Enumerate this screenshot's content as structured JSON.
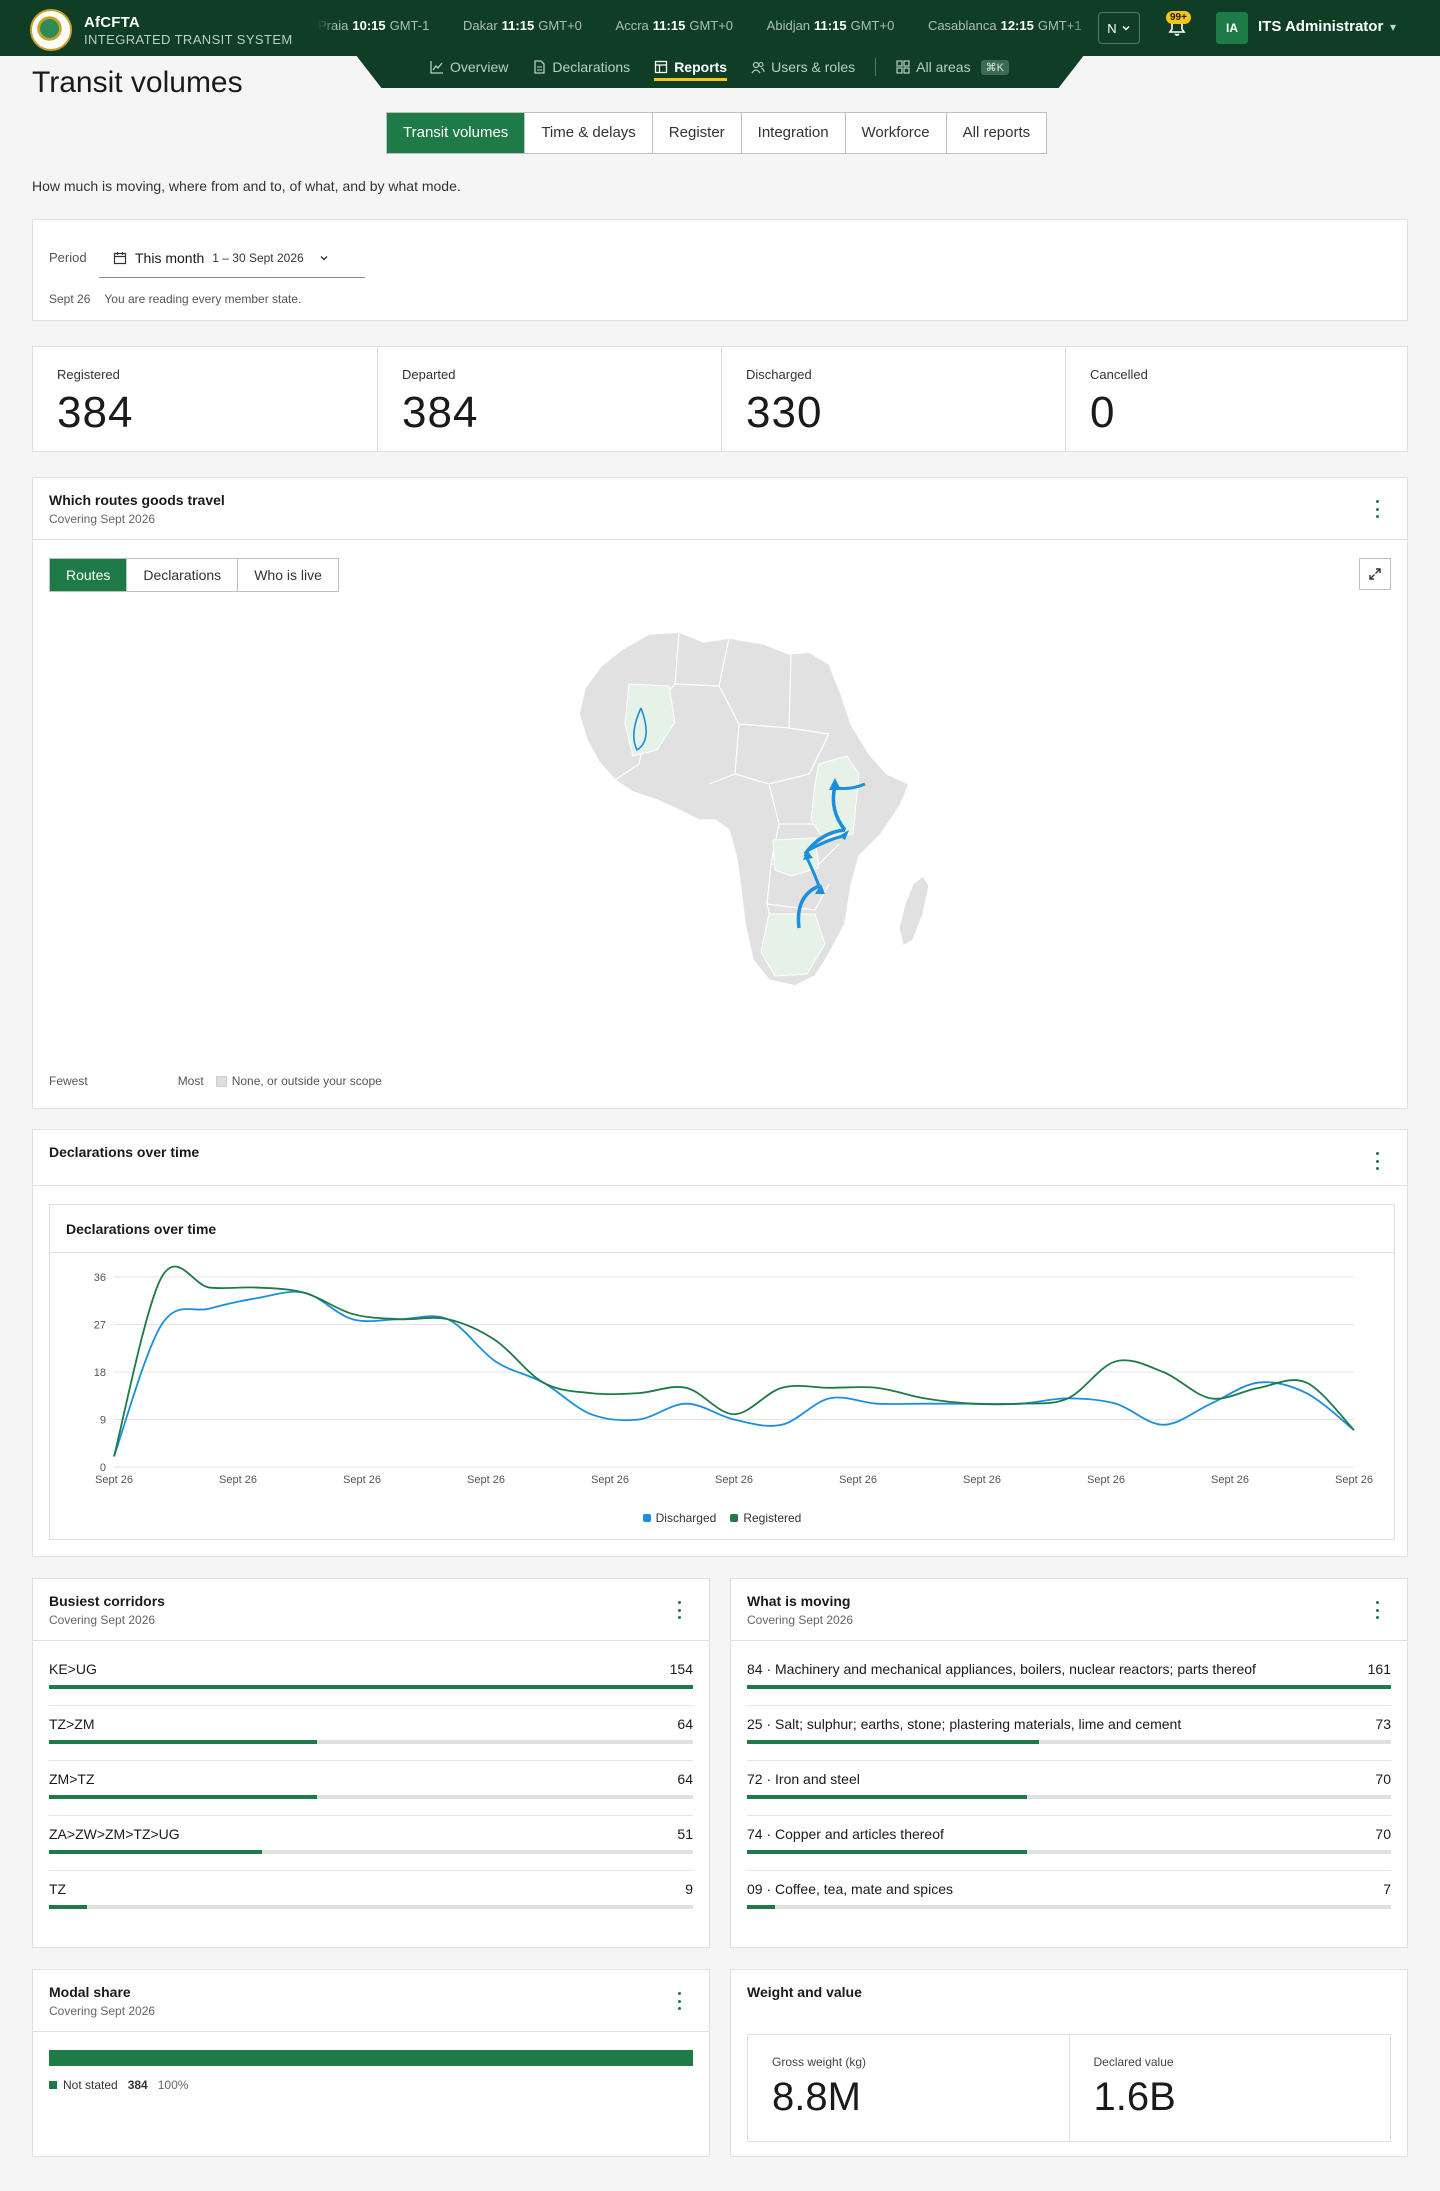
{
  "app": {
    "name": "AfCFTA",
    "subtitle": "INTEGRATED TRANSIT SYSTEM",
    "colors": {
      "brand": "#0f3d25",
      "accent": "#1e7a46",
      "highlight": "#f5c518",
      "discharged": "#1b8fdc",
      "registered": "#1e7a46"
    }
  },
  "clocks": [
    {
      "city": "Praia",
      "time": "10:15",
      "zone": "GMT-1"
    },
    {
      "city": "Dakar",
      "time": "11:15",
      "zone": "GMT+0"
    },
    {
      "city": "Accra",
      "time": "11:15",
      "zone": "GMT+0"
    },
    {
      "city": "Abidjan",
      "time": "11:15",
      "zone": "GMT+0"
    },
    {
      "city": "Casablanca",
      "time": "12:15",
      "zone": "GMT+1"
    }
  ],
  "header": {
    "language": "N",
    "notifications_badge": "99+",
    "avatar_initials": "IA",
    "user_name": "ITS Administrator"
  },
  "nav": {
    "items": [
      {
        "label": "Overview",
        "icon": "chart-line-icon"
      },
      {
        "label": "Declarations",
        "icon": "document-icon"
      },
      {
        "label": "Reports",
        "icon": "table-icon",
        "active": true
      },
      {
        "label": "Users & roles",
        "icon": "users-icon"
      }
    ],
    "all_areas": "All areas",
    "all_areas_shortcut": "⌘K"
  },
  "page": {
    "title": "Transit volumes",
    "intro": "How much is moving, where from and to, of what, and by what mode.",
    "tabs": [
      "Transit volumes",
      "Time & delays",
      "Register",
      "Integration",
      "Workforce",
      "All reports"
    ]
  },
  "period": {
    "label": "Period",
    "selected": "This month",
    "range": "1 – 30 Sept 2026",
    "foot_month": "Sept 26",
    "foot_scope": "You are reading every member state."
  },
  "kpis": [
    {
      "label": "Registered",
      "value": "384"
    },
    {
      "label": "Departed",
      "value": "384"
    },
    {
      "label": "Discharged",
      "value": "330"
    },
    {
      "label": "Cancelled",
      "value": "0"
    }
  ],
  "routes_card": {
    "title": "Which routes goods travel",
    "subtitle": "Covering Sept 2026",
    "segments": [
      "Routes",
      "Declarations",
      "Who is live"
    ],
    "legend_fewest": "Fewest",
    "legend_most": "Most",
    "legend_none": "None, or outside your scope"
  },
  "declarations_card": {
    "title": "Declarations over time",
    "inner_title": "Declarations over time"
  },
  "chart_data": {
    "type": "line",
    "title": "Declarations over time",
    "x_tick_labels": [
      "Sept 26",
      "Sept 26",
      "Sept 26",
      "Sept 26",
      "Sept 26",
      "Sept 26",
      "Sept 26",
      "Sept 26",
      "Sept 26",
      "Sept 26",
      "Sept 26"
    ],
    "y_ticks": [
      0,
      9,
      18,
      27,
      36
    ],
    "ylim": [
      0,
      36
    ],
    "grid": true,
    "legend": "bottom",
    "series": [
      {
        "name": "Discharged",
        "color": "#1b8fdc",
        "values": [
          2,
          27,
          30,
          32,
          33,
          28,
          28,
          28,
          20,
          16,
          10,
          9,
          12,
          9,
          8,
          13,
          12,
          12,
          12,
          12,
          13,
          12,
          8,
          12,
          16,
          14,
          7
        ]
      },
      {
        "name": "Registered",
        "color": "#1e7a46",
        "values": [
          2,
          36,
          34,
          34,
          33,
          29,
          28,
          28,
          24,
          16,
          14,
          14,
          15,
          10,
          15,
          15,
          15,
          13,
          12,
          12,
          13,
          20,
          18,
          13,
          15,
          16,
          7
        ]
      }
    ]
  },
  "corridors": {
    "title": "Busiest corridors",
    "subtitle": "Covering Sept 2026",
    "max": 154,
    "rows": [
      {
        "label": "KE>UG",
        "value": 154
      },
      {
        "label": "TZ>ZM",
        "value": 64
      },
      {
        "label": "ZM>TZ",
        "value": 64
      },
      {
        "label": "ZA>ZW>ZM>TZ>UG",
        "value": 51
      },
      {
        "label": "TZ",
        "value": 9
      }
    ]
  },
  "moving": {
    "title": "What is moving",
    "subtitle": "Covering Sept 2026",
    "max": 161,
    "rows": [
      {
        "label": "84 · Machinery and mechanical appliances, boilers, nuclear reactors; parts thereof",
        "value": 161
      },
      {
        "label": "25 · Salt; sulphur; earths, stone; plastering materials, lime and cement",
        "value": 73
      },
      {
        "label": "72 · Iron and steel",
        "value": 70
      },
      {
        "label": "74 · Copper and articles thereof",
        "value": 70
      },
      {
        "label": "09 · Coffee, tea, mate and spices",
        "value": 7
      }
    ]
  },
  "modal": {
    "title": "Modal share",
    "subtitle": "Covering Sept 2026",
    "label": "Not stated",
    "count": "384",
    "percent": "100%",
    "share": 1.0
  },
  "weight_value": {
    "title": "Weight and value",
    "gross_label": "Gross weight (kg)",
    "gross_value": "8.8M",
    "declared_label": "Declared value",
    "declared_value": "1.6B"
  }
}
